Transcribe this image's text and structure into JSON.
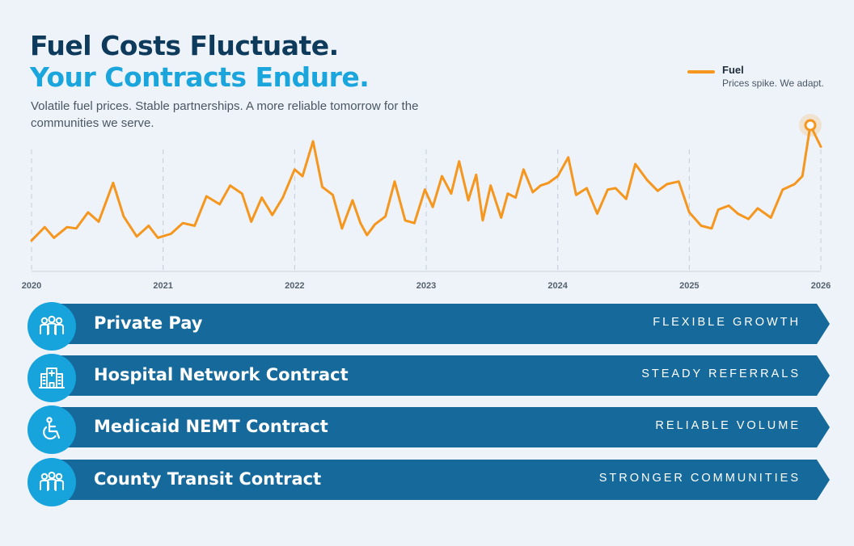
{
  "header": {
    "headline_1": "Fuel Costs Fluctuate.",
    "headline_2": "Your Contracts Endure.",
    "subtitle": "Volatile fuel prices. Stable partnerships. A more reliable tomorrow for the communities we serve."
  },
  "legend": {
    "series_name": "Fuel",
    "note": "Prices spike. We adapt.",
    "color": "#f5961e"
  },
  "colors": {
    "line": "#f5961e",
    "band": "#16699b",
    "circle": "#17a3db",
    "headline_dark": "#0e3a5c",
    "headline_accent": "#1aa6dc"
  },
  "chart_data": {
    "type": "line",
    "title": "",
    "xlabel": "",
    "ylabel": "",
    "x_ticks": [
      "2020",
      "2021",
      "2022",
      "2023",
      "2024",
      "2025",
      "2026"
    ],
    "xlim": [
      2020,
      2026
    ],
    "ylim": [
      0,
      100
    ],
    "y_axis_shown": false,
    "grid": "vertical dashed at year ticks",
    "legend_position": "top-right",
    "highlighted_point": "2025.92 peak",
    "series": [
      {
        "name": "Fuel",
        "x": [
          2020.0,
          2020.1,
          2020.17,
          2020.27,
          2020.34,
          2020.43,
          2020.51,
          2020.62,
          2020.7,
          2020.8,
          2020.89,
          2020.96,
          2021.06,
          2021.15,
          2021.24,
          2021.33,
          2021.43,
          2021.51,
          2021.6,
          2021.67,
          2021.75,
          2021.83,
          2021.91,
          2022.0,
          2022.06,
          2022.14,
          2022.21,
          2022.29,
          2022.36,
          2022.44,
          2022.5,
          2022.55,
          2022.61,
          2022.69,
          2022.76,
          2022.84,
          2022.91,
          2022.99,
          2023.05,
          2023.12,
          2023.19,
          2023.25,
          2023.32,
          2023.38,
          2023.43,
          2023.49,
          2023.57,
          2023.62,
          2023.68,
          2023.74,
          2023.81,
          2023.87,
          2023.93,
          2024.0,
          2024.08,
          2024.14,
          2024.22,
          2024.3,
          2024.38,
          2024.44,
          2024.52,
          2024.59,
          2024.68,
          2024.76,
          2024.83,
          2024.92,
          2025.0,
          2025.09,
          2025.17,
          2025.22,
          2025.3,
          2025.37,
          2025.45,
          2025.52,
          2025.62,
          2025.71,
          2025.8,
          2025.86,
          2025.92,
          2026.0
        ],
        "values": [
          14,
          24,
          16,
          24,
          23,
          35,
          28,
          57,
          32,
          17,
          25,
          16,
          19,
          27,
          25,
          47,
          41,
          55,
          49,
          28,
          46,
          33,
          46,
          67,
          62,
          88,
          54,
          48,
          23,
          44,
          27,
          18,
          26,
          32,
          58,
          29,
          27,
          52,
          39,
          62,
          49,
          73,
          44,
          63,
          29,
          55,
          31,
          49,
          46,
          67,
          50,
          55,
          57,
          62,
          76,
          48,
          53,
          34,
          52,
          53,
          45,
          71,
          59,
          51,
          56,
          58,
          35,
          25,
          23,
          37,
          40,
          34,
          30,
          38,
          31,
          52,
          56,
          62,
          100,
          84
        ]
      }
    ]
  },
  "bands": [
    {
      "label": "Private Pay",
      "tag": "FLEXIBLE GROWTH",
      "icon": "people-group-icon"
    },
    {
      "label": "Hospital Network Contract",
      "tag": "STEADY REFERRALS",
      "icon": "hospital-icon"
    },
    {
      "label": "Medicaid NEMT Contract",
      "tag": "RELIABLE VOLUME",
      "icon": "wheelchair-icon"
    },
    {
      "label": "County Transit Contract",
      "tag": "STRONGER COMMUNITIES",
      "icon": "people-group-icon"
    }
  ]
}
